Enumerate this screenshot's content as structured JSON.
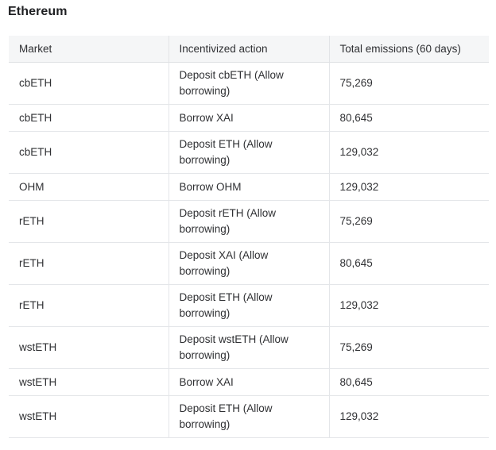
{
  "heading": "Ethereum",
  "table": {
    "columns": [
      "Market",
      "Incentivized action",
      "Total emissions (60 days)"
    ],
    "rows": [
      {
        "market": "cbETH",
        "action": "Deposit cbETH (Allow borrowing)",
        "emissions": "75,269"
      },
      {
        "market": "cbETH",
        "action": "Borrow XAI",
        "emissions": "80,645"
      },
      {
        "market": "cbETH",
        "action": "Deposit ETH (Allow borrowing)",
        "emissions": "129,032"
      },
      {
        "market": "OHM",
        "action": "Borrow OHM",
        "emissions": "129,032"
      },
      {
        "market": "rETH",
        "action": "Deposit rETH  (Allow borrowing)",
        "emissions": "75,269"
      },
      {
        "market": "rETH",
        "action": "Deposit XAI  (Allow borrowing)",
        "emissions": "80,645"
      },
      {
        "market": "rETH",
        "action": "Deposit ETH  (Allow borrowing)",
        "emissions": "129,032"
      },
      {
        "market": "wstETH",
        "action": "Deposit wstETH  (Allow borrowing)",
        "emissions": "75,269"
      },
      {
        "market": "wstETH",
        "action": "Borrow XAI",
        "emissions": "80,645"
      },
      {
        "market": "wstETH",
        "action": "Deposit ETH  (Allow borrowing)",
        "emissions": "129,032"
      }
    ]
  }
}
